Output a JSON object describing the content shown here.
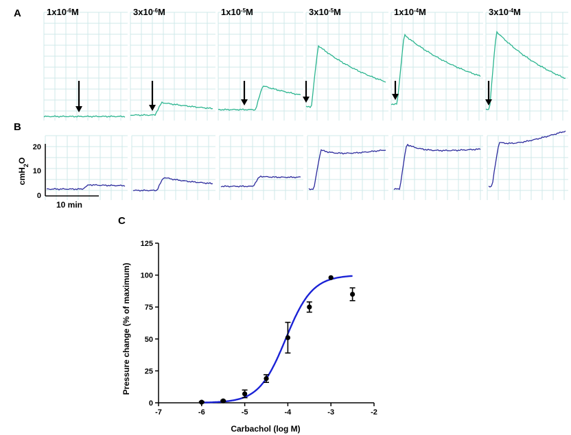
{
  "panel_labels": {
    "a": "A",
    "b": "B",
    "c": "C"
  },
  "concentrations": [
    {
      "base": "1x10",
      "exp": "-6",
      "unit": "M"
    },
    {
      "base": "3x10",
      "exp": "-6",
      "unit": "M"
    },
    {
      "base": "1x10",
      "exp": "-5",
      "unit": "M"
    },
    {
      "base": "3x10",
      "exp": "-5",
      "unit": "M"
    },
    {
      "base": "1x10",
      "exp": "-4",
      "unit": "M"
    },
    {
      "base": "3x10",
      "exp": "-4",
      "unit": "M"
    }
  ],
  "panel_b": {
    "y_ticks": [
      "20",
      "10",
      "0"
    ],
    "ylabel": {
      "pre": "cmH",
      "sub": "2",
      "post": "O"
    },
    "scale_bar_label": "10 min"
  },
  "colors": {
    "trace_a": "#2bb58f",
    "trace_b": "#2b2a9c",
    "grid": "#cfe8ea",
    "fit_curve": "#1a22d6",
    "points": "#000000"
  },
  "chart_data": {
    "type": "scatter",
    "title": "",
    "xlabel": "Carbachol (log M)",
    "ylabel": "Pressure change (% of maximum)",
    "xlim": [
      -7,
      -2
    ],
    "ylim": [
      0,
      125
    ],
    "x_ticks": [
      "-7",
      "-6",
      "-5",
      "-4",
      "-3",
      "-2"
    ],
    "y_ticks": [
      "0",
      "25",
      "50",
      "75",
      "100",
      "125"
    ],
    "points": [
      {
        "x": -6.0,
        "y": 0.5,
        "err": 0.5
      },
      {
        "x": -5.5,
        "y": 1.5,
        "err": 0.5
      },
      {
        "x": -5.0,
        "y": 7,
        "err": 3
      },
      {
        "x": -4.5,
        "y": 19,
        "err": 3
      },
      {
        "x": -4.0,
        "y": 51,
        "err": 12
      },
      {
        "x": -3.5,
        "y": 75,
        "err": 4
      },
      {
        "x": -3.0,
        "y": 98,
        "err": 0
      },
      {
        "x": -2.5,
        "y": 85,
        "err": 5
      }
    ],
    "fit": {
      "kind": "sigmoid",
      "ec50_log": -4.05,
      "hill": 1.4,
      "bottom": 0,
      "top": 100,
      "x_range": [
        -6,
        -2.5
      ]
    }
  }
}
